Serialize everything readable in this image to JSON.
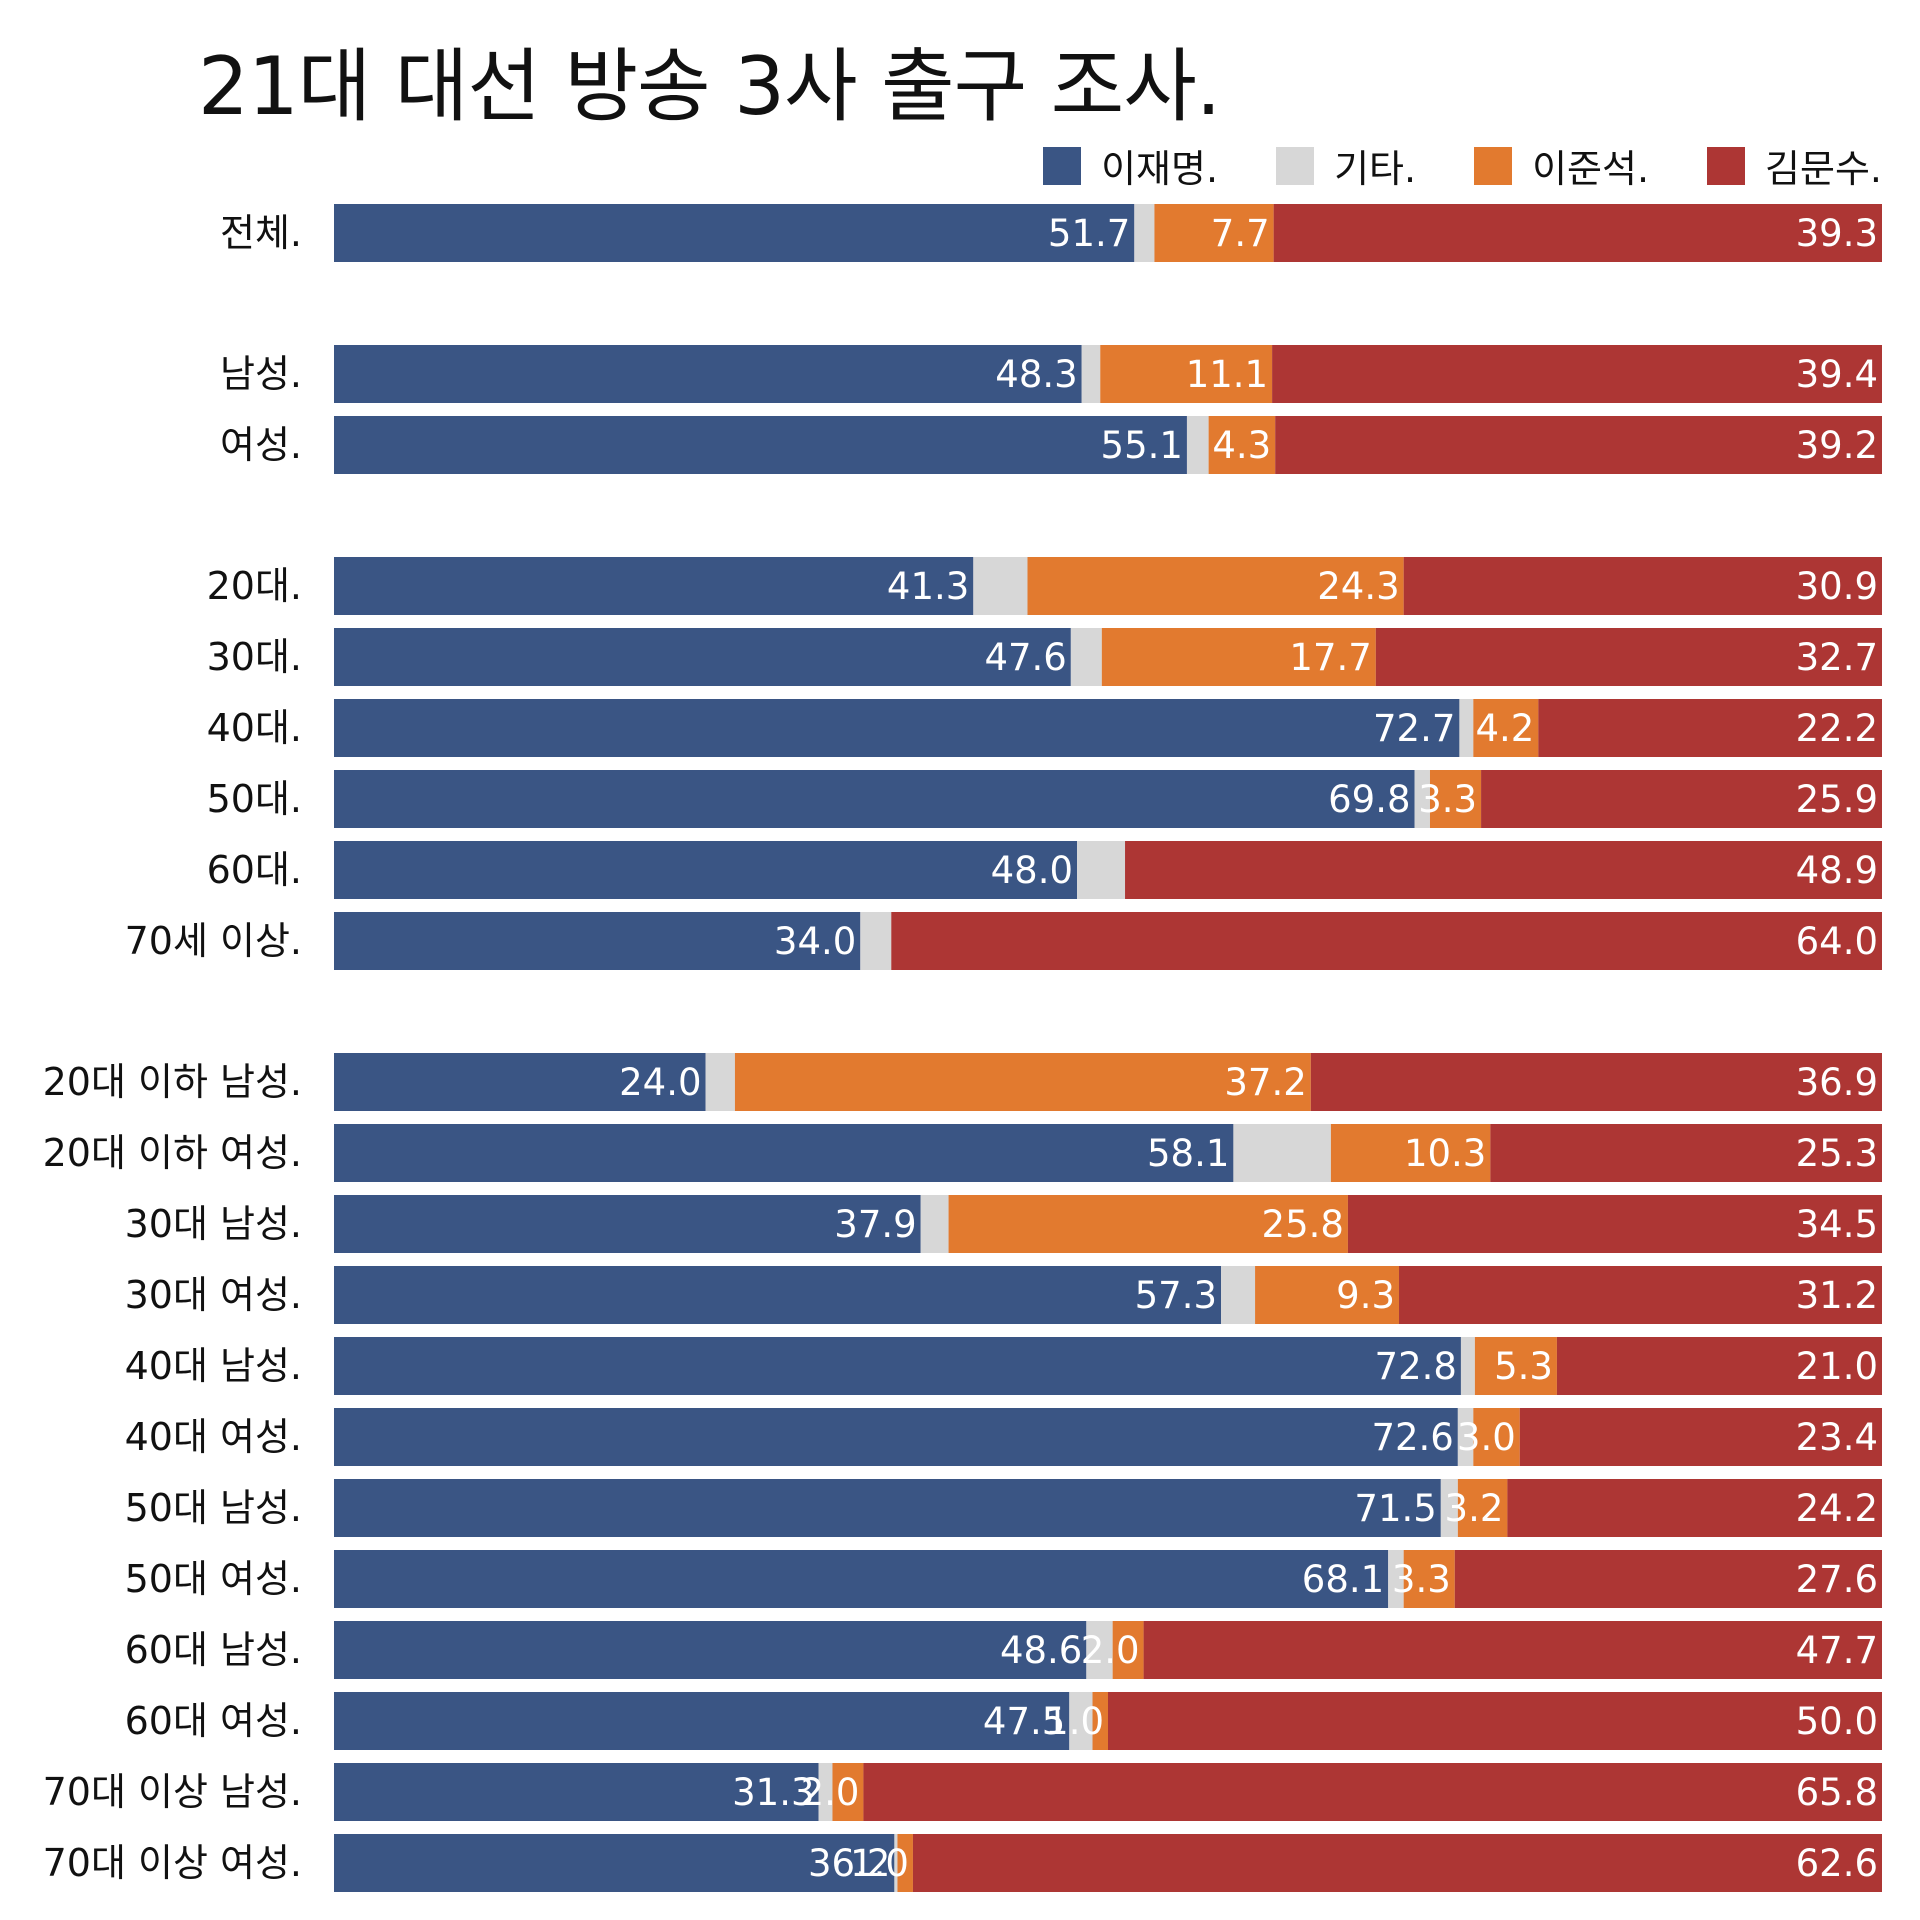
{
  "chart_data": {
    "type": "bar",
    "orientation": "horizontal",
    "stacked": true,
    "title": "21대 대선 방송 3사 출구 조사.",
    "legend_position": "top-right",
    "grid": false,
    "xlim": [
      0,
      100
    ],
    "series": [
      {
        "name": "이재명.",
        "color": "#3a5584"
      },
      {
        "name": "기타.",
        "color": "#d7d7d7"
      },
      {
        "name": "이준석.",
        "color": "#e27a2f"
      },
      {
        "name": "김문수.",
        "color": "#ad3634"
      }
    ],
    "rows": [
      {
        "label": "전체.",
        "lee": 51.7,
        "other": 1.3,
        "junseok": 7.7,
        "kim": 39.3
      },
      {
        "label": "남성.",
        "lee": 48.3,
        "other": 1.2,
        "junseok": 11.1,
        "kim": 39.4
      },
      {
        "label": "여성.",
        "lee": 55.1,
        "other": 1.4,
        "junseok": 4.3,
        "kim": 39.2
      },
      {
        "label": "20대.",
        "lee": 41.3,
        "other": 3.5,
        "junseok": 24.3,
        "kim": 30.9
      },
      {
        "label": "30대.",
        "lee": 47.6,
        "other": 2.0,
        "junseok": 17.7,
        "kim": 32.7
      },
      {
        "label": "40대.",
        "lee": 72.7,
        "other": 0.9,
        "junseok": 4.2,
        "kim": 22.2
      },
      {
        "label": "50대.",
        "lee": 69.8,
        "other": 1.0,
        "junseok": 3.3,
        "kim": 25.9
      },
      {
        "label": "60대.",
        "lee": 48.0,
        "other": 3.1,
        "junseok": 0,
        "kim": 48.9
      },
      {
        "label": "70세 이상.",
        "lee": 34.0,
        "other": 2.0,
        "junseok": 0,
        "kim": 64.0
      },
      {
        "label": "20대 이하 남성.",
        "lee": 24.0,
        "other": 1.9,
        "junseok": 37.2,
        "kim": 36.9
      },
      {
        "label": "20대 이하 여성.",
        "lee": 58.1,
        "other": 6.3,
        "junseok": 10.3,
        "kim": 25.3
      },
      {
        "label": "30대 남성.",
        "lee": 37.9,
        "other": 1.8,
        "junseok": 25.8,
        "kim": 34.5
      },
      {
        "label": "30대 여성.",
        "lee": 57.3,
        "other": 2.2,
        "junseok": 9.3,
        "kim": 31.2
      },
      {
        "label": "40대 남성.",
        "lee": 72.8,
        "other": 0.9,
        "junseok": 5.3,
        "kim": 21.0
      },
      {
        "label": "40대 여성.",
        "lee": 72.6,
        "other": 1.0,
        "junseok": 3.0,
        "kim": 23.4
      },
      {
        "label": "50대 남성.",
        "lee": 71.5,
        "other": 1.1,
        "junseok": 3.2,
        "kim": 24.2
      },
      {
        "label": "50대 여성.",
        "lee": 68.1,
        "other": 1.0,
        "junseok": 3.3,
        "kim": 27.6
      },
      {
        "label": "60대 남성.",
        "lee": 48.6,
        "other": 1.7,
        "junseok": 2.0,
        "kim": 47.7
      },
      {
        "label": "60대 여성.",
        "lee": 47.5,
        "other": 1.5,
        "junseok": 1.0,
        "kim": 50.0
      },
      {
        "label": "70대 이상 남성.",
        "lee": 31.3,
        "other": 0.9,
        "junseok": 2.0,
        "kim": 65.8
      },
      {
        "label": "70대 이상 여성.",
        "lee": 36.2,
        "other": 0.2,
        "junseok": 1.0,
        "kim": 62.6
      }
    ],
    "groups": [
      [
        0
      ],
      [
        1,
        2
      ],
      [
        3,
        4,
        5,
        6,
        7,
        8
      ],
      [
        9,
        10,
        11,
        12,
        13,
        14,
        15,
        16,
        17,
        18,
        19,
        20
      ]
    ]
  }
}
